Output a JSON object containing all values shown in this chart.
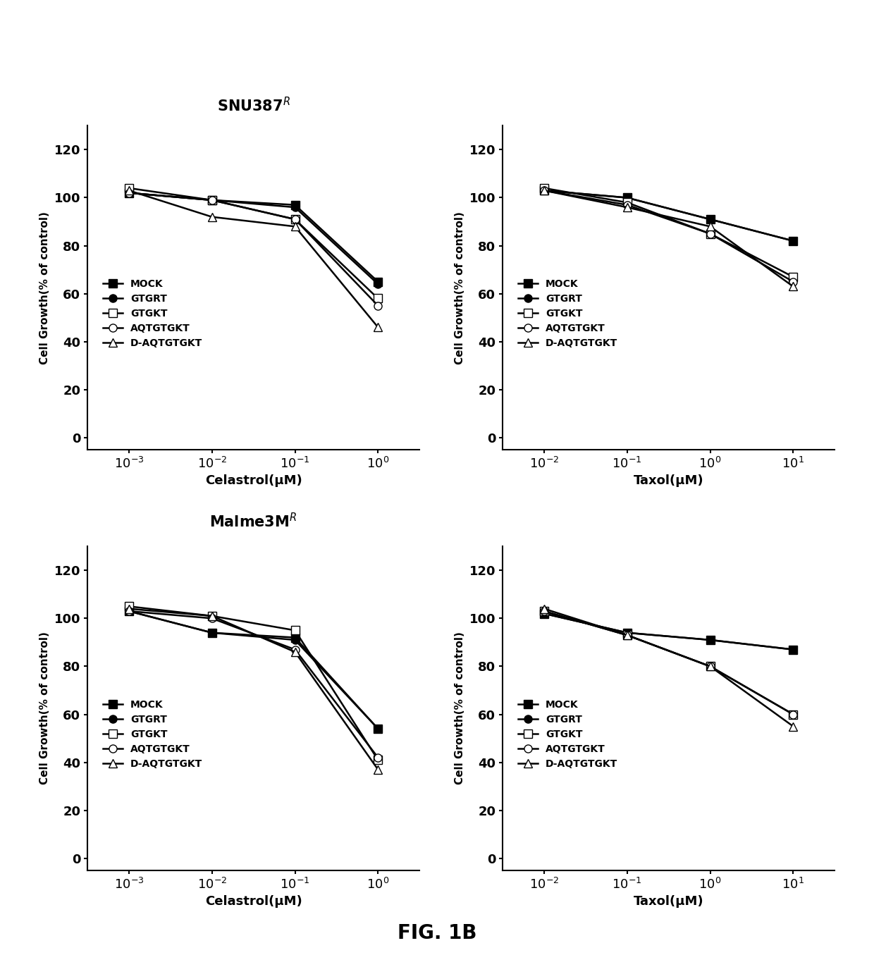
{
  "title_top": "SNU387$^R$",
  "title_bottom": "Malme3M$^R$",
  "fig_label": "FIG. 1B",
  "series_labels": [
    "MOCK",
    "GTGRT",
    "GTGKT",
    "AQTGTGKT",
    "D-AQTGTGKT"
  ],
  "markers": [
    "s",
    "o",
    "s",
    "o",
    "^"
  ],
  "marker_fill": [
    "black",
    "black",
    "white",
    "white",
    "white"
  ],
  "linestyles": [
    "-",
    "-",
    "-",
    "-",
    "-"
  ],
  "panel_TL": {
    "xlabel": "Celastrol(μM)",
    "xvals": [
      0.001,
      0.01,
      0.1,
      1.0
    ],
    "xlim_log": [
      -3.5,
      0.5
    ],
    "xticks": [
      0.001,
      0.01,
      0.1,
      1.0
    ],
    "yticks": [
      0,
      20,
      40,
      60,
      80,
      100,
      120
    ],
    "ylim": [
      -5,
      130
    ],
    "MOCK": [
      102,
      99,
      97,
      65
    ],
    "GTGRT": [
      102,
      99,
      96,
      64
    ],
    "GTGKT": [
      104,
      99,
      91,
      58
    ],
    "AQTGTGKT": [
      102,
      99,
      91,
      55
    ],
    "D-AQTGTGKT": [
      103,
      92,
      88,
      46
    ]
  },
  "panel_TR": {
    "xlabel": "Taxol(μM)",
    "xvals": [
      0.01,
      0.1,
      1.0,
      10.0
    ],
    "xlim_log": [
      -2.5,
      1.5
    ],
    "xticks": [
      0.01,
      0.1,
      1.0,
      10.0
    ],
    "yticks": [
      0,
      20,
      40,
      60,
      80,
      100,
      120
    ],
    "ylim": [
      -5,
      130
    ],
    "MOCK": [
      103,
      100,
      91,
      82
    ],
    "GTGRT": [
      103,
      100,
      91,
      82
    ],
    "GTGKT": [
      104,
      98,
      85,
      67
    ],
    "AQTGTGKT": [
      103,
      97,
      85,
      65
    ],
    "D-AQTGTGKT": [
      103,
      96,
      88,
      63
    ]
  },
  "panel_BL": {
    "xlabel": "Celastrol(μM)",
    "xvals": [
      0.001,
      0.01,
      0.1,
      1.0
    ],
    "xlim_log": [
      -3.5,
      0.5
    ],
    "xticks": [
      0.001,
      0.01,
      0.1,
      1.0
    ],
    "yticks": [
      0,
      20,
      40,
      60,
      80,
      100,
      120
    ],
    "ylim": [
      -5,
      130
    ],
    "MOCK": [
      103,
      94,
      92,
      54
    ],
    "GTGRT": [
      103,
      94,
      91,
      54
    ],
    "GTGKT": [
      105,
      101,
      95,
      41
    ],
    "AQTGTGKT": [
      103,
      100,
      87,
      42
    ],
    "D-AQTGTGKT": [
      104,
      101,
      86,
      37
    ]
  },
  "panel_BR": {
    "xlabel": "Taxol(μM)",
    "xvals": [
      0.01,
      0.1,
      1.0,
      10.0
    ],
    "xlim_log": [
      -2.5,
      1.5
    ],
    "xticks": [
      0.01,
      0.1,
      1.0,
      10.0
    ],
    "yticks": [
      0,
      20,
      40,
      60,
      80,
      100,
      120
    ],
    "ylim": [
      -5,
      130
    ],
    "MOCK": [
      102,
      94,
      91,
      87
    ],
    "GTGRT": [
      102,
      94,
      91,
      87
    ],
    "GTGKT": [
      103,
      93,
      80,
      60
    ],
    "AQTGTGKT": [
      103,
      93,
      80,
      60
    ],
    "D-AQTGTGKT": [
      104,
      93,
      80,
      55
    ]
  }
}
